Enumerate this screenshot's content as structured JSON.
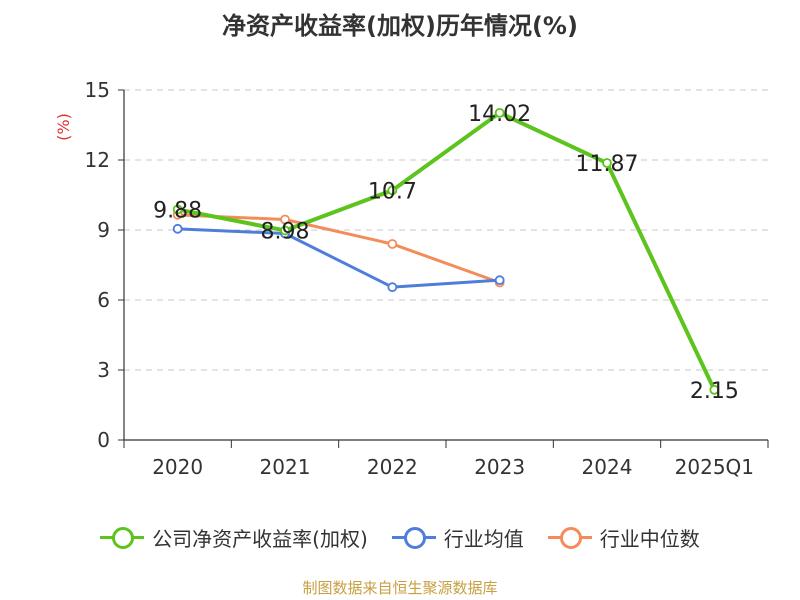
{
  "title": "净资产收益率(加权)历年情况(%)",
  "source": "制图数据来自恒生聚源数据库",
  "chart_data": {
    "type": "line",
    "categories": [
      "2020",
      "2021",
      "2022",
      "2023",
      "2024",
      "2025Q1"
    ],
    "ylabel": "(%)",
    "ylim": [
      0,
      15
    ],
    "yticks": [
      0,
      3,
      6,
      9,
      12,
      15
    ],
    "grid": true,
    "legend_position": "bottom",
    "series": [
      {
        "name": "公司净资产收益率(加权)",
        "color": "#5cc41c",
        "values": [
          9.88,
          8.98,
          10.7,
          14.02,
          11.87,
          2.15
        ],
        "labels": [
          "9.88",
          "8.98",
          "10.7",
          "14.02",
          "11.87",
          "2.15"
        ]
      },
      {
        "name": "行业均值",
        "color": "#4d7ed9",
        "values": [
          9.05,
          8.85,
          6.55,
          6.85,
          null,
          null
        ]
      },
      {
        "name": "行业中位数",
        "color": "#f48c5a",
        "values": [
          9.65,
          9.45,
          8.4,
          6.75,
          null,
          null
        ]
      }
    ]
  }
}
